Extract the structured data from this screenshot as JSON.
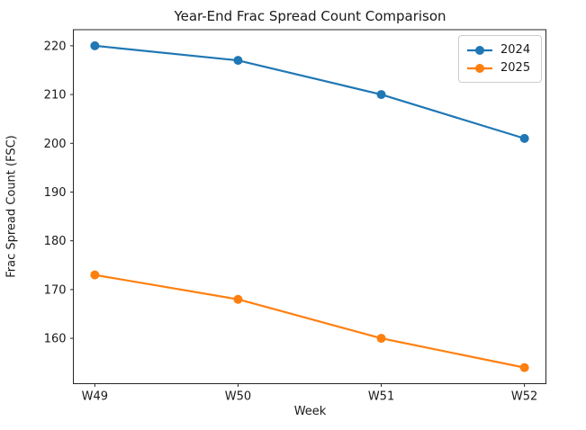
{
  "figure": {
    "background": "#ffffff"
  },
  "chart_data": {
    "type": "line",
    "title": "Year-End Frac Spread Count Comparison",
    "xlabel": "Week",
    "ylabel": "Frac Spread Count (FSC)",
    "categories": [
      "W49",
      "W50",
      "W51",
      "W52"
    ],
    "series": [
      {
        "name": "2024",
        "color": "#1f77b4",
        "marker": "circle",
        "values": [
          220,
          217,
          210,
          201
        ]
      },
      {
        "name": "2025",
        "color": "#ff7f0e",
        "marker": "circle",
        "values": [
          173,
          168,
          160,
          154
        ]
      }
    ],
    "ylim": [
      150.7,
      223.3
    ],
    "yticks": [
      160,
      170,
      180,
      190,
      200,
      210,
      220
    ],
    "xlim": [
      -0.15,
      3.15
    ],
    "grid": false,
    "legend": {
      "position": "upper right",
      "entries": [
        "2024",
        "2025"
      ]
    }
  },
  "style": {
    "axis_color": "#262626",
    "text_color": "#1a1a1a",
    "legend_border_color": "#cccccc",
    "line_width": 2.2,
    "marker_radius": 5
  }
}
